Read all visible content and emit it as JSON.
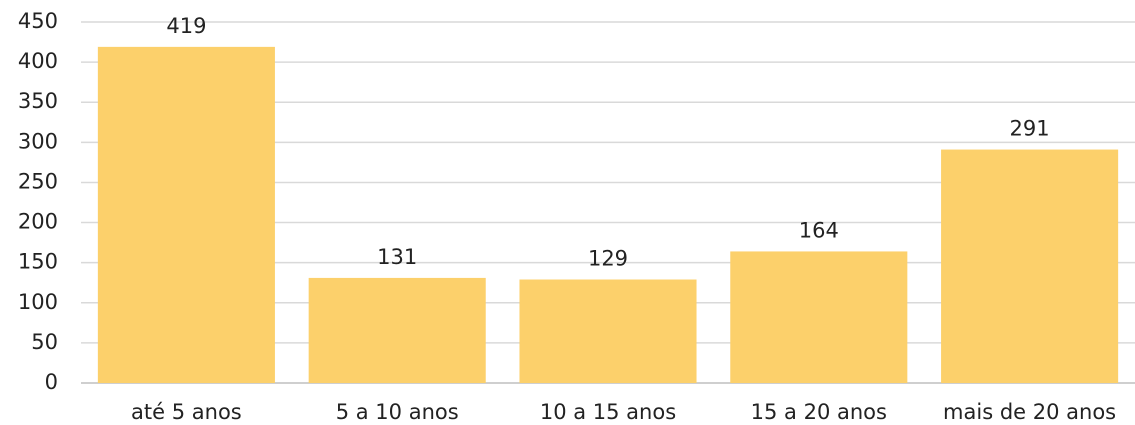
{
  "chart_data": {
    "type": "bar",
    "categories": [
      "até 5 anos",
      "5 a 10 anos",
      "10 a 15 anos",
      "15 a 20 anos",
      "mais de 20 anos"
    ],
    "values": [
      419,
      131,
      129,
      164,
      291
    ],
    "color": "#fcd06b",
    "ylim": [
      0,
      450
    ],
    "yticks": [
      0,
      50,
      100,
      150,
      200,
      250,
      300,
      350,
      400,
      450
    ],
    "grid": true
  }
}
